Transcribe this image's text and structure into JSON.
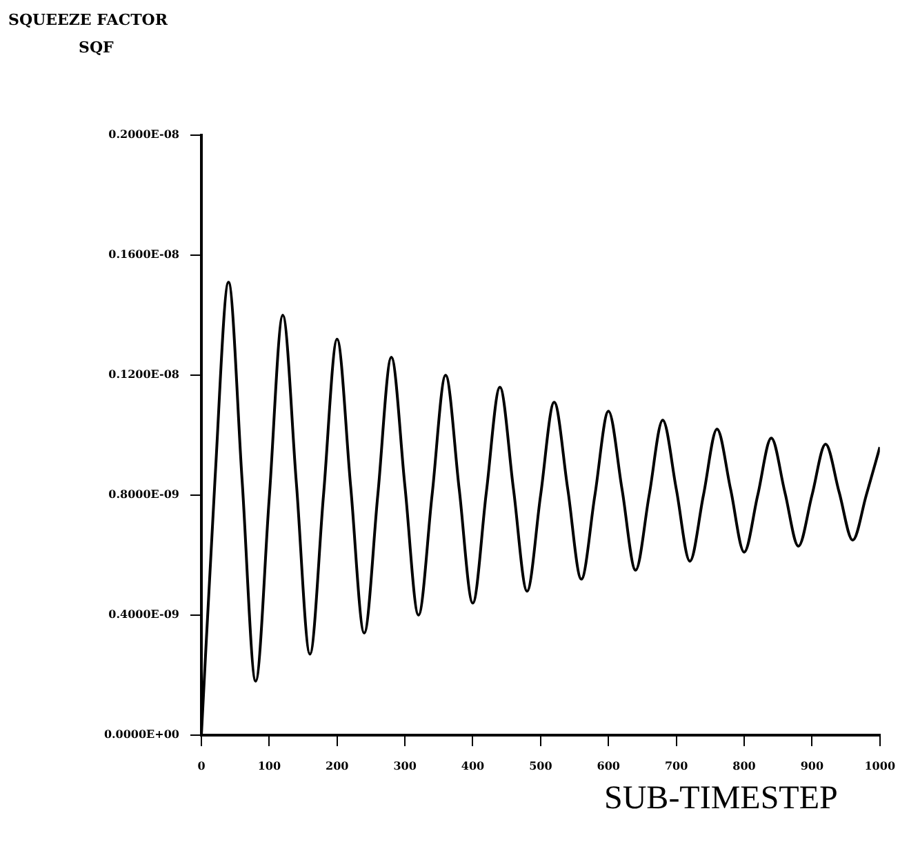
{
  "chart_data": {
    "type": "line",
    "title": "SQUEEZE FACTOR",
    "subtitle": "SQF",
    "xlabel": "SUB-TIMESTEP",
    "x": [
      0,
      20,
      40,
      60,
      80,
      100,
      120,
      140,
      160,
      180,
      200,
      220,
      240,
      260,
      280,
      300,
      320,
      340,
      360,
      380,
      400,
      420,
      440,
      460,
      480,
      500,
      520,
      540,
      560,
      580,
      600,
      620,
      640,
      660,
      680,
      700,
      720,
      740,
      760,
      780,
      800,
      820,
      840,
      860,
      880,
      900,
      920,
      940,
      960,
      980,
      1000
    ],
    "series": [
      {
        "color": "#000000",
        "values": [
          0,
          8.5e-10,
          1.51e-09,
          8.5e-10,
          1.8e-10,
          7.9e-10,
          1.4e-09,
          8.4e-10,
          2.7e-10,
          8e-10,
          1.32e-09,
          8.3e-10,
          3.4e-10,
          8e-10,
          1.26e-09,
          8.3e-10,
          4e-10,
          8e-10,
          1.2e-09,
          8.2e-10,
          4.4e-10,
          8.1e-10,
          1.16e-09,
          8.2e-10,
          4.8e-10,
          8e-10,
          1.11e-09,
          8.2e-10,
          5.2e-10,
          8e-10,
          1.08e-09,
          8.2e-10,
          5.5e-10,
          8e-10,
          1.05e-09,
          8.2e-10,
          5.8e-10,
          8e-10,
          1.02e-09,
          8.2e-10,
          6.1e-10,
          8e-10,
          9.9e-10,
          8.1e-10,
          6.3e-10,
          8e-10,
          9.7e-10,
          8.1e-10,
          6.5e-10,
          8e-10,
          9.6e-10
        ]
      }
    ],
    "xlim": [
      0,
      1000
    ],
    "xticks": [
      0,
      100,
      200,
      300,
      400,
      500,
      600,
      700,
      800,
      900,
      1000
    ],
    "ylim": [
      0,
      2e-09
    ],
    "yticks": [
      {
        "value": 0,
        "label": "0.0000E+00"
      },
      {
        "value": 4e-10,
        "label": "0.4000E-09"
      },
      {
        "value": 8e-10,
        "label": "0.8000E-09"
      },
      {
        "value": 1.2e-09,
        "label": "0.1200E-08"
      },
      {
        "value": 1.6e-09,
        "label": "0.1600E-08"
      },
      {
        "value": 2e-09,
        "label": "0.2000E-08"
      }
    ],
    "marker": "none",
    "line_style": "solid",
    "legend": false
  }
}
